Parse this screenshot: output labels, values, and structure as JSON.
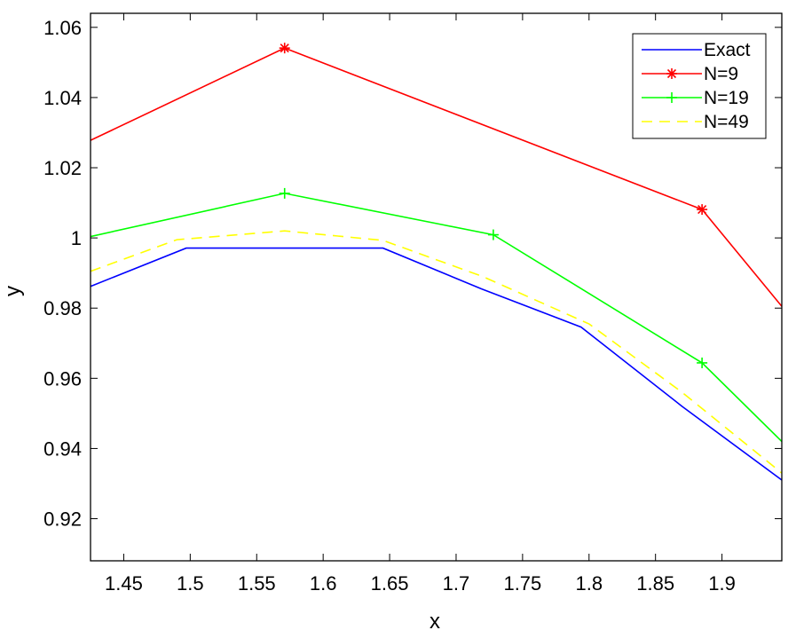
{
  "chart_data": {
    "type": "line",
    "title": "",
    "xlabel": "x",
    "ylabel": "y",
    "xlim": [
      1.425,
      1.945
    ],
    "ylim": [
      0.908,
      1.064
    ],
    "xticks": [
      1.45,
      1.5,
      1.55,
      1.6,
      1.65,
      1.7,
      1.75,
      1.8,
      1.85,
      1.9
    ],
    "xtick_labels": [
      "1.45",
      "1.5",
      "1.55",
      "1.6",
      "1.65",
      "1.7",
      "1.75",
      "1.8",
      "1.85",
      "1.9"
    ],
    "yticks": [
      0.92,
      0.94,
      0.96,
      0.98,
      1.0,
      1.02,
      1.04,
      1.06
    ],
    "ytick_labels": [
      "0.92",
      "0.94",
      "0.96",
      "0.98",
      "1",
      "1.02",
      "1.04",
      "1.06"
    ],
    "grid": false,
    "legend_position": "top-right",
    "series": [
      {
        "name": "Exact",
        "color": "#0000ff",
        "dash": "solid",
        "marker": "none",
        "x": [
          1.425,
          1.497,
          1.571,
          1.645,
          1.719,
          1.794,
          1.87,
          1.945
        ],
        "y": [
          0.9862,
          0.9971,
          0.9971,
          0.9971,
          0.9855,
          0.9746,
          0.952,
          0.931
        ],
        "markers": []
      },
      {
        "name": "N=9",
        "color": "#ff0000",
        "dash": "solid",
        "marker": "asterisk",
        "x": [
          1.425,
          1.571,
          1.885,
          1.945
        ],
        "y": [
          1.0278,
          1.0541,
          1.0081,
          0.9805
        ],
        "markers": [
          1,
          2
        ]
      },
      {
        "name": "N=19",
        "color": "#00ff00",
        "dash": "solid",
        "marker": "plus",
        "x": [
          1.425,
          1.571,
          1.728,
          1.885,
          1.945
        ],
        "y": [
          1.0004,
          1.0127,
          1.0009,
          0.9644,
          0.942
        ],
        "markers": [
          1,
          2,
          3
        ]
      },
      {
        "name": "N=49",
        "color": "#ffff00",
        "dash": "dashed",
        "marker": "none",
        "x": [
          1.425,
          1.49,
          1.571,
          1.645,
          1.72,
          1.8,
          1.87,
          1.945
        ],
        "y": [
          0.9905,
          0.9995,
          1.002,
          0.9993,
          0.989,
          0.9755,
          0.956,
          0.933
        ],
        "markers": []
      }
    ]
  }
}
